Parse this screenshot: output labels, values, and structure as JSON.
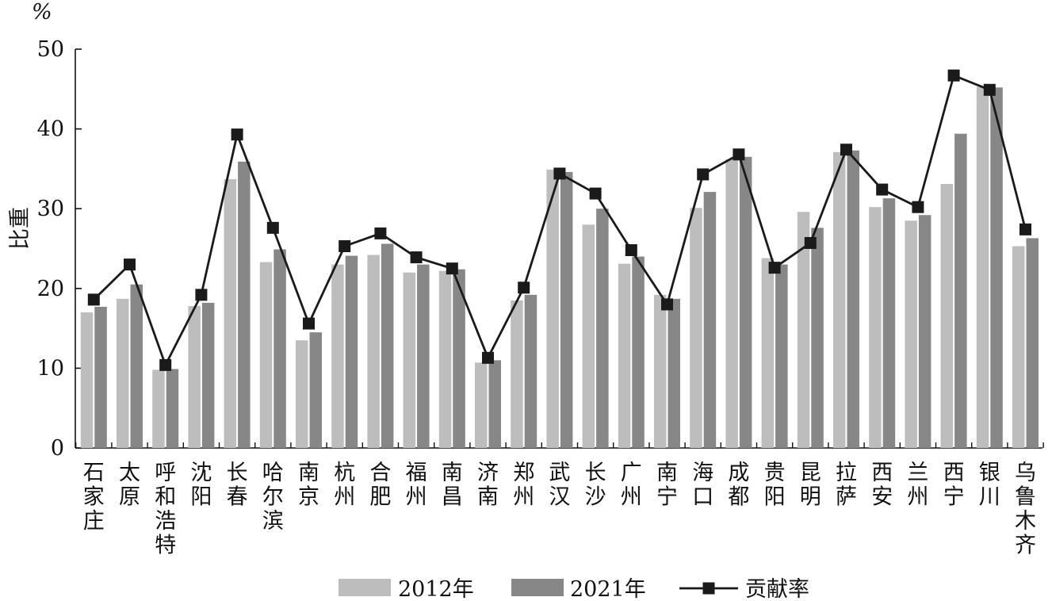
{
  "chart_data": {
    "type": "bar",
    "unit_label": "%",
    "ylabel": "比重",
    "ylim": [
      0,
      50
    ],
    "yticks": [
      0,
      10,
      20,
      30,
      40,
      50
    ],
    "grid": false,
    "legend_position": "bottom",
    "categories": [
      "石家庄",
      "太原",
      "呼和浩特",
      "沈阳",
      "长春",
      "哈尔滨",
      "南京",
      "杭州",
      "合肥",
      "福州",
      "南昌",
      "济南",
      "郑州",
      "武汉",
      "长沙",
      "广州",
      "南宁",
      "海口",
      "成都",
      "贵阳",
      "昆明",
      "拉萨",
      "西安",
      "兰州",
      "西宁",
      "银川",
      "乌鲁木齐"
    ],
    "series": [
      {
        "name": "2012年",
        "kind": "bar",
        "color": "#bdbdbd",
        "values": [
          17.0,
          18.7,
          9.8,
          17.8,
          33.7,
          23.3,
          13.5,
          23.0,
          24.2,
          22.0,
          22.2,
          10.7,
          18.5,
          34.9,
          28.0,
          23.1,
          19.2,
          30.1,
          36.2,
          23.8,
          29.6,
          37.1,
          30.2,
          28.5,
          33.1,
          45.3,
          25.3
        ]
      },
      {
        "name": "2021年",
        "kind": "bar",
        "color": "#878787",
        "values": [
          17.7,
          20.5,
          9.9,
          18.2,
          35.9,
          24.9,
          14.5,
          24.1,
          25.6,
          23.0,
          22.4,
          11.0,
          19.2,
          34.6,
          30.0,
          24.0,
          18.7,
          32.1,
          36.5,
          23.0,
          27.6,
          37.3,
          31.3,
          29.2,
          39.4,
          45.2,
          26.3
        ]
      },
      {
        "name": "贡献率",
        "kind": "line",
        "color": "#1a1a1a",
        "values": [
          18.6,
          23.0,
          10.4,
          19.2,
          39.3,
          27.6,
          15.6,
          25.3,
          26.9,
          23.9,
          22.5,
          11.3,
          20.1,
          34.4,
          31.9,
          24.8,
          18.0,
          34.3,
          36.8,
          22.6,
          25.7,
          37.4,
          32.4,
          30.2,
          46.7,
          44.9,
          27.4
        ]
      }
    ]
  }
}
